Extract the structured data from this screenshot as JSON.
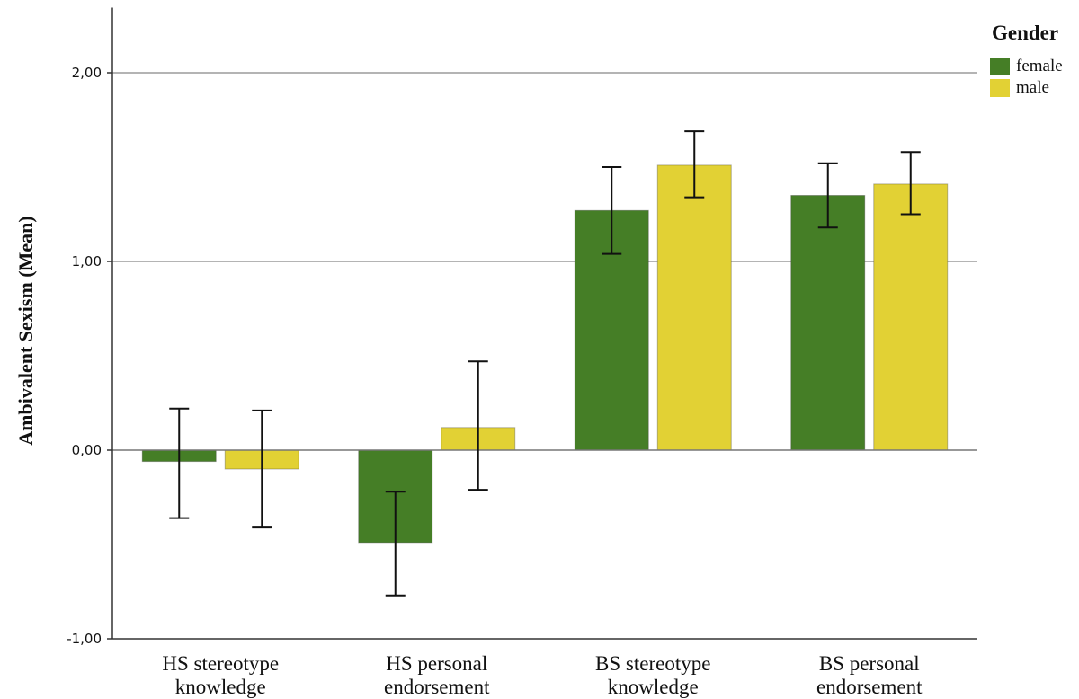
{
  "chart_data": {
    "type": "bar",
    "ylabel": "Ambivalent Sexism (Mean)",
    "ylim": [
      -1,
      2.35
    ],
    "yticks": [
      -1,
      0,
      1,
      2
    ],
    "ytick_labels": [
      "-1,00",
      "0,00",
      "1,00",
      "2,00"
    ],
    "grid": "horizontal",
    "categories": [
      [
        "HS stereotype",
        "knowledge"
      ],
      [
        "HS personal",
        "endorsement"
      ],
      [
        "BS stereotype",
        "knowledge"
      ],
      [
        "BS personal",
        "endorsement"
      ]
    ],
    "legend": {
      "title": "Gender",
      "position": "top-right"
    },
    "series": [
      {
        "name": "female",
        "color": "#457e26",
        "values": [
          -0.06,
          -0.49,
          1.27,
          1.35
        ],
        "error_low": [
          -0.36,
          -0.77,
          1.04,
          1.18
        ],
        "error_high": [
          0.22,
          -0.22,
          1.5,
          1.52
        ]
      },
      {
        "name": "male",
        "color": "#e2d134",
        "values": [
          -0.1,
          0.12,
          1.51,
          1.41
        ],
        "error_low": [
          -0.41,
          -0.21,
          1.34,
          1.25
        ],
        "error_high": [
          0.21,
          0.47,
          1.69,
          1.58
        ]
      }
    ]
  }
}
